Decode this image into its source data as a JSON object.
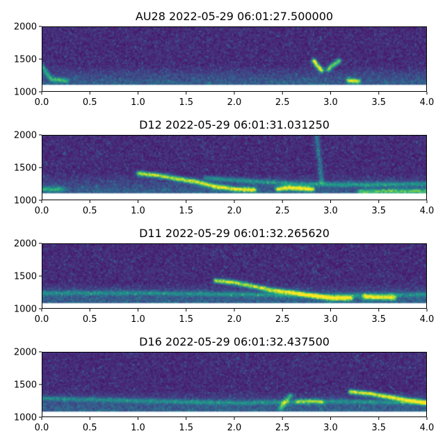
{
  "chart_data": [
    {
      "type": "heatmap",
      "title": "AU28 2022-05-29 06:01:27.500000",
      "xlim": [
        0.0,
        4.0
      ],
      "ylim": [
        1000,
        2000
      ],
      "data_ylim": [
        1100,
        2000
      ],
      "xticks": [
        "0.0",
        "0.5",
        "1.0",
        "1.5",
        "2.0",
        "2.5",
        "3.0",
        "3.5",
        "4.0"
      ],
      "yticks": [
        "1000",
        "1500",
        "2000"
      ],
      "grid": false,
      "colormap": "viridis",
      "features": [
        {
          "points": [
            [
              2.82,
              1480
            ],
            [
              2.85,
              1420
            ],
            [
              2.88,
              1370
            ],
            [
              2.9,
              1340
            ]
          ],
          "intensity": 0.95,
          "width": 45
        },
        {
          "points": [
            [
              2.97,
              1350
            ],
            [
              3.0,
              1400
            ],
            [
              3.04,
              1440
            ],
            [
              3.08,
              1480
            ]
          ],
          "intensity": 0.75,
          "width": 45
        },
        {
          "points": [
            [
              3.18,
              1180
            ],
            [
              3.23,
              1180
            ],
            [
              3.28,
              1170
            ]
          ],
          "intensity": 0.8,
          "width": 30
        },
        {
          "points": [
            [
              0.0,
              1400
            ],
            [
              0.05,
              1280
            ],
            [
              0.1,
              1200
            ],
            [
              0.25,
              1180
            ]
          ],
          "intensity": 0.45,
          "width": 35
        }
      ]
    },
    {
      "type": "heatmap",
      "title": "D12 2022-05-29 06:01:31.031250",
      "xlim": [
        0.0,
        4.0
      ],
      "ylim": [
        1000,
        2000
      ],
      "data_ylim": [
        1100,
        2000
      ],
      "xticks": [
        "0.0",
        "0.5",
        "1.0",
        "1.5",
        "2.0",
        "2.5",
        "3.0",
        "3.5",
        "4.0"
      ],
      "yticks": [
        "1000",
        "1500",
        "2000"
      ],
      "grid": false,
      "colormap": "viridis",
      "features": [
        {
          "points": [
            [
              1.0,
              1420
            ],
            [
              1.2,
              1390
            ],
            [
              1.4,
              1340
            ],
            [
              1.6,
              1290
            ],
            [
              1.8,
              1220
            ],
            [
              2.0,
              1180
            ],
            [
              2.2,
              1170
            ]
          ],
          "intensity": 0.85,
          "width": 35
        },
        {
          "points": [
            [
              2.45,
              1180
            ],
            [
              2.55,
              1200
            ],
            [
              2.7,
              1190
            ],
            [
              2.8,
              1180
            ]
          ],
          "intensity": 0.95,
          "width": 30
        },
        {
          "points": [
            [
              3.3,
              1140
            ],
            [
              3.6,
              1150
            ],
            [
              4.0,
              1150
            ]
          ],
          "intensity": 0.5,
          "width": 30
        },
        {
          "points": [
            [
              1.7,
              1350
            ],
            [
              2.2,
              1300
            ],
            [
              2.7,
              1260
            ],
            [
              3.2,
              1250
            ],
            [
              4.0,
              1260
            ]
          ],
          "intensity": 0.35,
          "width": 60
        },
        {
          "points": [
            [
              2.85,
              1980
            ],
            [
              2.88,
              1600
            ],
            [
              2.9,
              1300
            ]
          ],
          "intensity": 0.3,
          "width": 25
        },
        {
          "points": [
            [
              0.0,
              1180
            ],
            [
              0.2,
              1180
            ]
          ],
          "intensity": 0.4,
          "width": 35
        }
      ]
    },
    {
      "type": "heatmap",
      "title": "D11 2022-05-29 06:01:32.265620",
      "xlim": [
        0.0,
        4.0
      ],
      "ylim": [
        1000,
        2000
      ],
      "data_ylim": [
        1080,
        2000
      ],
      "xticks": [
        "0.0",
        "0.5",
        "1.0",
        "1.5",
        "2.0",
        "2.5",
        "3.0",
        "3.5",
        "4.0"
      ],
      "yticks": [
        "1000",
        "1500",
        "2000"
      ],
      "grid": false,
      "colormap": "viridis",
      "features": [
        {
          "points": [
            [
              1.8,
              1440
            ],
            [
              2.0,
              1410
            ],
            [
              2.2,
              1350
            ],
            [
              2.4,
              1290
            ],
            [
              2.6,
              1260
            ],
            [
              2.8,
              1210
            ],
            [
              3.0,
              1170
            ],
            [
              3.2,
              1170
            ]
          ],
          "intensity": 0.85,
          "width": 35
        },
        {
          "points": [
            [
              3.35,
              1190
            ],
            [
              3.5,
              1180
            ],
            [
              3.65,
              1180
            ]
          ],
          "intensity": 0.8,
          "width": 30
        },
        {
          "points": [
            [
              0.0,
              1250
            ],
            [
              1.0,
              1250
            ],
            [
              2.0,
              1230
            ],
            [
              3.0,
              1210
            ],
            [
              4.0,
              1230
            ]
          ],
          "intensity": 0.3,
          "width": 70
        }
      ]
    },
    {
      "type": "heatmap",
      "title": "D16 2022-05-29 06:01:32.437500",
      "xlim": [
        0.0,
        4.0
      ],
      "ylim": [
        1000,
        2000
      ],
      "data_ylim": [
        1080,
        2000
      ],
      "xticks": [
        "0.0",
        "0.5",
        "1.0",
        "1.5",
        "2.0",
        "2.5",
        "3.0",
        "3.5",
        "4.0"
      ],
      "yticks": [
        "1000",
        "1500",
        "2000"
      ],
      "grid": false,
      "colormap": "viridis",
      "features": [
        {
          "points": [
            [
              3.2,
              1400
            ],
            [
              3.4,
              1370
            ],
            [
              3.6,
              1320
            ],
            [
              3.8,
              1270
            ],
            [
              4.0,
              1230
            ]
          ],
          "intensity": 0.9,
          "width": 35
        },
        {
          "points": [
            [
              2.48,
              1150
            ],
            [
              2.52,
              1250
            ],
            [
              2.58,
              1340
            ]
          ],
          "intensity": 0.55,
          "width": 30
        },
        {
          "points": [
            [
              0.0,
              1300
            ],
            [
              1.0,
              1260
            ],
            [
              2.0,
              1230
            ],
            [
              3.0,
              1250
            ],
            [
              4.0,
              1230
            ]
          ],
          "intensity": 0.3,
          "width": 70
        },
        {
          "points": [
            [
              2.65,
              1250
            ],
            [
              2.8,
              1260
            ],
            [
              2.9,
              1240
            ]
          ],
          "intensity": 0.4,
          "width": 40
        }
      ]
    }
  ]
}
